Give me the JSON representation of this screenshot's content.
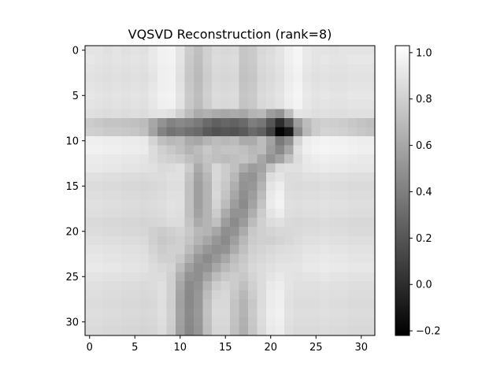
{
  "chart_data": {
    "type": "heatmap",
    "title": "VQSVD Reconstruction (rank=8)",
    "xlabel": "",
    "ylabel": "",
    "colormap": "gray",
    "grid": false,
    "rows": 32,
    "cols": 32,
    "xlim": [
      -0.5,
      31.5
    ],
    "ylim": [
      31.5,
      -0.5
    ],
    "x_ticks": [
      0,
      5,
      10,
      15,
      20,
      25,
      30
    ],
    "y_ticks": [
      0,
      5,
      10,
      15,
      20,
      25,
      30
    ],
    "vmin": -0.22,
    "vmax": 1.03,
    "colorbar_ticks": [
      -0.2,
      0.0,
      0.2,
      0.4,
      0.6,
      0.8,
      1.0
    ],
    "colorbar_tick_labels": [
      "−0.2",
      "0.0",
      "0.2",
      "0.4",
      "0.6",
      "0.8",
      "1.0"
    ],
    "values": [
      [
        0.9,
        0.9,
        0.88,
        0.9,
        0.88,
        0.89,
        0.88,
        0.92,
        0.96,
        0.97,
        0.9,
        0.78,
        0.72,
        0.8,
        0.85,
        0.84,
        0.85,
        0.75,
        0.77,
        0.84,
        0.86,
        0.9,
        0.95,
        0.98,
        0.92,
        0.9,
        0.9,
        0.89,
        0.9,
        0.9,
        0.9,
        0.9
      ],
      [
        0.91,
        0.9,
        0.89,
        0.9,
        0.89,
        0.9,
        0.89,
        0.92,
        0.96,
        0.97,
        0.9,
        0.77,
        0.71,
        0.8,
        0.86,
        0.85,
        0.86,
        0.75,
        0.77,
        0.85,
        0.87,
        0.9,
        0.95,
        0.98,
        0.92,
        0.9,
        0.91,
        0.9,
        0.9,
        0.91,
        0.91,
        0.91
      ],
      [
        0.9,
        0.89,
        0.88,
        0.89,
        0.88,
        0.89,
        0.88,
        0.91,
        0.95,
        0.96,
        0.89,
        0.76,
        0.7,
        0.79,
        0.85,
        0.84,
        0.85,
        0.74,
        0.76,
        0.84,
        0.86,
        0.89,
        0.94,
        0.97,
        0.91,
        0.89,
        0.9,
        0.89,
        0.89,
        0.9,
        0.9,
        0.9
      ],
      [
        0.89,
        0.88,
        0.87,
        0.88,
        0.87,
        0.88,
        0.87,
        0.9,
        0.95,
        0.96,
        0.88,
        0.75,
        0.69,
        0.78,
        0.84,
        0.83,
        0.84,
        0.73,
        0.75,
        0.83,
        0.85,
        0.88,
        0.93,
        0.96,
        0.9,
        0.88,
        0.89,
        0.88,
        0.88,
        0.89,
        0.89,
        0.89
      ],
      [
        0.9,
        0.89,
        0.88,
        0.89,
        0.88,
        0.89,
        0.88,
        0.91,
        0.95,
        0.96,
        0.89,
        0.76,
        0.7,
        0.79,
        0.85,
        0.84,
        0.85,
        0.74,
        0.76,
        0.84,
        0.86,
        0.89,
        0.94,
        0.97,
        0.91,
        0.89,
        0.9,
        0.89,
        0.89,
        0.9,
        0.9,
        0.9
      ],
      [
        0.91,
        0.9,
        0.89,
        0.9,
        0.89,
        0.9,
        0.89,
        0.92,
        0.96,
        0.97,
        0.9,
        0.77,
        0.71,
        0.8,
        0.86,
        0.85,
        0.86,
        0.75,
        0.77,
        0.85,
        0.87,
        0.9,
        0.95,
        0.98,
        0.92,
        0.9,
        0.91,
        0.9,
        0.9,
        0.91,
        0.91,
        0.91
      ],
      [
        0.9,
        0.89,
        0.88,
        0.89,
        0.88,
        0.89,
        0.88,
        0.91,
        0.95,
        0.96,
        0.89,
        0.76,
        0.7,
        0.79,
        0.85,
        0.84,
        0.85,
        0.74,
        0.76,
        0.84,
        0.86,
        0.89,
        0.94,
        0.97,
        0.91,
        0.89,
        0.9,
        0.89,
        0.89,
        0.9,
        0.9,
        0.9
      ],
      [
        0.88,
        0.87,
        0.86,
        0.87,
        0.86,
        0.87,
        0.86,
        0.89,
        0.9,
        0.88,
        0.8,
        0.7,
        0.62,
        0.65,
        0.62,
        0.6,
        0.62,
        0.6,
        0.66,
        0.68,
        0.55,
        0.5,
        0.7,
        0.9,
        0.89,
        0.87,
        0.88,
        0.87,
        0.87,
        0.88,
        0.88,
        0.88
      ],
      [
        0.78,
        0.76,
        0.74,
        0.74,
        0.73,
        0.72,
        0.7,
        0.6,
        0.5,
        0.42,
        0.45,
        0.42,
        0.38,
        0.3,
        0.25,
        0.28,
        0.26,
        0.3,
        0.4,
        0.36,
        0.2,
        0.0,
        0.2,
        0.55,
        0.7,
        0.78,
        0.8,
        0.79,
        0.78,
        0.76,
        0.74,
        0.72
      ],
      [
        0.8,
        0.79,
        0.77,
        0.77,
        0.76,
        0.75,
        0.72,
        0.58,
        0.42,
        0.35,
        0.38,
        0.33,
        0.3,
        0.22,
        0.18,
        0.2,
        0.18,
        0.22,
        0.3,
        0.25,
        0.1,
        -0.2,
        -0.1,
        0.45,
        0.68,
        0.78,
        0.82,
        0.81,
        0.8,
        0.78,
        0.76,
        0.74
      ],
      [
        0.95,
        0.95,
        0.94,
        0.94,
        0.93,
        0.93,
        0.92,
        0.82,
        0.72,
        0.68,
        0.7,
        0.62,
        0.6,
        0.66,
        0.7,
        0.68,
        0.7,
        0.62,
        0.62,
        0.7,
        0.58,
        0.38,
        0.48,
        0.82,
        0.94,
        0.96,
        0.97,
        0.96,
        0.96,
        0.95,
        0.94,
        0.94
      ],
      [
        0.96,
        0.96,
        0.95,
        0.95,
        0.94,
        0.94,
        0.93,
        0.86,
        0.8,
        0.76,
        0.72,
        0.66,
        0.7,
        0.76,
        0.72,
        0.74,
        0.74,
        0.72,
        0.68,
        0.7,
        0.55,
        0.45,
        0.6,
        0.88,
        0.95,
        0.97,
        0.98,
        0.97,
        0.97,
        0.96,
        0.95,
        0.95
      ],
      [
        0.93,
        0.93,
        0.92,
        0.92,
        0.91,
        0.91,
        0.9,
        0.86,
        0.82,
        0.8,
        0.78,
        0.72,
        0.68,
        0.74,
        0.72,
        0.7,
        0.72,
        0.74,
        0.7,
        0.6,
        0.5,
        0.58,
        0.72,
        0.86,
        0.92,
        0.94,
        0.95,
        0.94,
        0.94,
        0.93,
        0.92,
        0.92
      ],
      [
        0.92,
        0.92,
        0.91,
        0.91,
        0.9,
        0.9,
        0.89,
        0.88,
        0.85,
        0.86,
        0.88,
        0.78,
        0.62,
        0.72,
        0.84,
        0.78,
        0.72,
        0.62,
        0.55,
        0.58,
        0.74,
        0.86,
        0.88,
        0.88,
        0.91,
        0.92,
        0.93,
        0.92,
        0.92,
        0.91,
        0.91,
        0.91
      ],
      [
        0.88,
        0.88,
        0.87,
        0.87,
        0.86,
        0.86,
        0.85,
        0.86,
        0.86,
        0.88,
        0.88,
        0.74,
        0.58,
        0.68,
        0.84,
        0.78,
        0.68,
        0.52,
        0.5,
        0.62,
        0.86,
        0.9,
        0.86,
        0.86,
        0.88,
        0.88,
        0.89,
        0.88,
        0.88,
        0.87,
        0.87,
        0.87
      ],
      [
        0.86,
        0.86,
        0.85,
        0.85,
        0.84,
        0.84,
        0.83,
        0.84,
        0.85,
        0.87,
        0.87,
        0.72,
        0.56,
        0.66,
        0.83,
        0.76,
        0.64,
        0.5,
        0.52,
        0.66,
        0.9,
        0.94,
        0.86,
        0.85,
        0.86,
        0.86,
        0.87,
        0.86,
        0.86,
        0.85,
        0.85,
        0.85
      ],
      [
        0.87,
        0.87,
        0.86,
        0.86,
        0.85,
        0.85,
        0.84,
        0.85,
        0.86,
        0.88,
        0.88,
        0.72,
        0.56,
        0.66,
        0.84,
        0.74,
        0.6,
        0.48,
        0.55,
        0.7,
        0.92,
        0.96,
        0.87,
        0.86,
        0.87,
        0.87,
        0.88,
        0.87,
        0.87,
        0.86,
        0.86,
        0.86
      ],
      [
        0.88,
        0.88,
        0.87,
        0.87,
        0.86,
        0.86,
        0.85,
        0.86,
        0.87,
        0.89,
        0.88,
        0.72,
        0.56,
        0.66,
        0.82,
        0.7,
        0.55,
        0.46,
        0.58,
        0.74,
        0.93,
        0.97,
        0.88,
        0.87,
        0.88,
        0.88,
        0.89,
        0.88,
        0.88,
        0.87,
        0.87,
        0.87
      ],
      [
        0.87,
        0.87,
        0.86,
        0.86,
        0.85,
        0.85,
        0.84,
        0.85,
        0.86,
        0.88,
        0.87,
        0.72,
        0.58,
        0.66,
        0.78,
        0.62,
        0.5,
        0.5,
        0.64,
        0.78,
        0.9,
        0.94,
        0.87,
        0.86,
        0.87,
        0.87,
        0.88,
        0.87,
        0.87,
        0.86,
        0.86,
        0.86
      ],
      [
        0.85,
        0.85,
        0.84,
        0.84,
        0.83,
        0.83,
        0.82,
        0.83,
        0.84,
        0.86,
        0.86,
        0.74,
        0.62,
        0.66,
        0.72,
        0.55,
        0.46,
        0.54,
        0.7,
        0.8,
        0.86,
        0.88,
        0.85,
        0.84,
        0.85,
        0.85,
        0.86,
        0.85,
        0.85,
        0.84,
        0.84,
        0.84
      ],
      [
        0.86,
        0.86,
        0.85,
        0.85,
        0.84,
        0.84,
        0.83,
        0.8,
        0.78,
        0.8,
        0.82,
        0.76,
        0.68,
        0.66,
        0.6,
        0.48,
        0.5,
        0.62,
        0.76,
        0.8,
        0.82,
        0.84,
        0.84,
        0.85,
        0.86,
        0.86,
        0.87,
        0.86,
        0.86,
        0.85,
        0.85,
        0.85
      ],
      [
        0.88,
        0.88,
        0.87,
        0.87,
        0.86,
        0.86,
        0.85,
        0.8,
        0.76,
        0.78,
        0.8,
        0.74,
        0.66,
        0.6,
        0.52,
        0.46,
        0.56,
        0.68,
        0.78,
        0.8,
        0.8,
        0.82,
        0.84,
        0.86,
        0.88,
        0.88,
        0.89,
        0.88,
        0.88,
        0.87,
        0.87,
        0.87
      ],
      [
        0.9,
        0.9,
        0.89,
        0.89,
        0.88,
        0.88,
        0.87,
        0.82,
        0.78,
        0.8,
        0.8,
        0.7,
        0.6,
        0.52,
        0.48,
        0.5,
        0.62,
        0.72,
        0.8,
        0.82,
        0.84,
        0.86,
        0.87,
        0.88,
        0.9,
        0.9,
        0.91,
        0.9,
        0.9,
        0.89,
        0.89,
        0.89
      ],
      [
        0.91,
        0.91,
        0.9,
        0.9,
        0.89,
        0.89,
        0.88,
        0.84,
        0.8,
        0.8,
        0.76,
        0.64,
        0.52,
        0.46,
        0.52,
        0.6,
        0.7,
        0.76,
        0.82,
        0.84,
        0.86,
        0.88,
        0.88,
        0.89,
        0.91,
        0.91,
        0.92,
        0.91,
        0.91,
        0.9,
        0.9,
        0.9
      ],
      [
        0.92,
        0.92,
        0.91,
        0.91,
        0.9,
        0.9,
        0.89,
        0.86,
        0.84,
        0.82,
        0.7,
        0.56,
        0.48,
        0.5,
        0.6,
        0.68,
        0.74,
        0.78,
        0.84,
        0.86,
        0.88,
        0.9,
        0.9,
        0.9,
        0.92,
        0.92,
        0.93,
        0.92,
        0.92,
        0.91,
        0.91,
        0.91
      ],
      [
        0.9,
        0.9,
        0.89,
        0.89,
        0.88,
        0.88,
        0.87,
        0.86,
        0.86,
        0.8,
        0.64,
        0.5,
        0.48,
        0.58,
        0.7,
        0.76,
        0.78,
        0.76,
        0.82,
        0.86,
        0.9,
        0.92,
        0.9,
        0.89,
        0.9,
        0.9,
        0.91,
        0.9,
        0.9,
        0.89,
        0.89,
        0.89
      ],
      [
        0.88,
        0.88,
        0.87,
        0.87,
        0.86,
        0.86,
        0.85,
        0.86,
        0.88,
        0.8,
        0.6,
        0.46,
        0.5,
        0.66,
        0.78,
        0.82,
        0.78,
        0.72,
        0.8,
        0.86,
        0.92,
        0.94,
        0.9,
        0.88,
        0.88,
        0.88,
        0.89,
        0.88,
        0.88,
        0.87,
        0.87,
        0.87
      ],
      [
        0.87,
        0.87,
        0.86,
        0.86,
        0.85,
        0.85,
        0.84,
        0.85,
        0.88,
        0.8,
        0.58,
        0.45,
        0.52,
        0.7,
        0.82,
        0.84,
        0.76,
        0.68,
        0.78,
        0.86,
        0.93,
        0.95,
        0.89,
        0.87,
        0.87,
        0.87,
        0.88,
        0.87,
        0.87,
        0.86,
        0.86,
        0.86
      ],
      [
        0.86,
        0.86,
        0.85,
        0.85,
        0.84,
        0.84,
        0.83,
        0.84,
        0.87,
        0.79,
        0.57,
        0.45,
        0.52,
        0.72,
        0.84,
        0.84,
        0.74,
        0.66,
        0.76,
        0.86,
        0.93,
        0.95,
        0.88,
        0.86,
        0.86,
        0.86,
        0.87,
        0.86,
        0.86,
        0.85,
        0.85,
        0.85
      ],
      [
        0.87,
        0.87,
        0.86,
        0.86,
        0.85,
        0.85,
        0.84,
        0.85,
        0.88,
        0.8,
        0.58,
        0.46,
        0.53,
        0.73,
        0.85,
        0.85,
        0.74,
        0.66,
        0.77,
        0.87,
        0.94,
        0.96,
        0.89,
        0.87,
        0.87,
        0.87,
        0.88,
        0.87,
        0.87,
        0.86,
        0.86,
        0.86
      ],
      [
        0.86,
        0.86,
        0.85,
        0.85,
        0.84,
        0.84,
        0.83,
        0.84,
        0.87,
        0.79,
        0.57,
        0.45,
        0.52,
        0.72,
        0.84,
        0.84,
        0.73,
        0.65,
        0.76,
        0.86,
        0.93,
        0.95,
        0.88,
        0.86,
        0.86,
        0.86,
        0.87,
        0.86,
        0.86,
        0.85,
        0.85,
        0.85
      ],
      [
        0.85,
        0.85,
        0.84,
        0.84,
        0.83,
        0.83,
        0.82,
        0.83,
        0.86,
        0.78,
        0.56,
        0.44,
        0.51,
        0.71,
        0.83,
        0.83,
        0.72,
        0.64,
        0.75,
        0.85,
        0.92,
        0.94,
        0.87,
        0.85,
        0.85,
        0.85,
        0.86,
        0.85,
        0.85,
        0.84,
        0.84,
        0.84
      ]
    ]
  }
}
